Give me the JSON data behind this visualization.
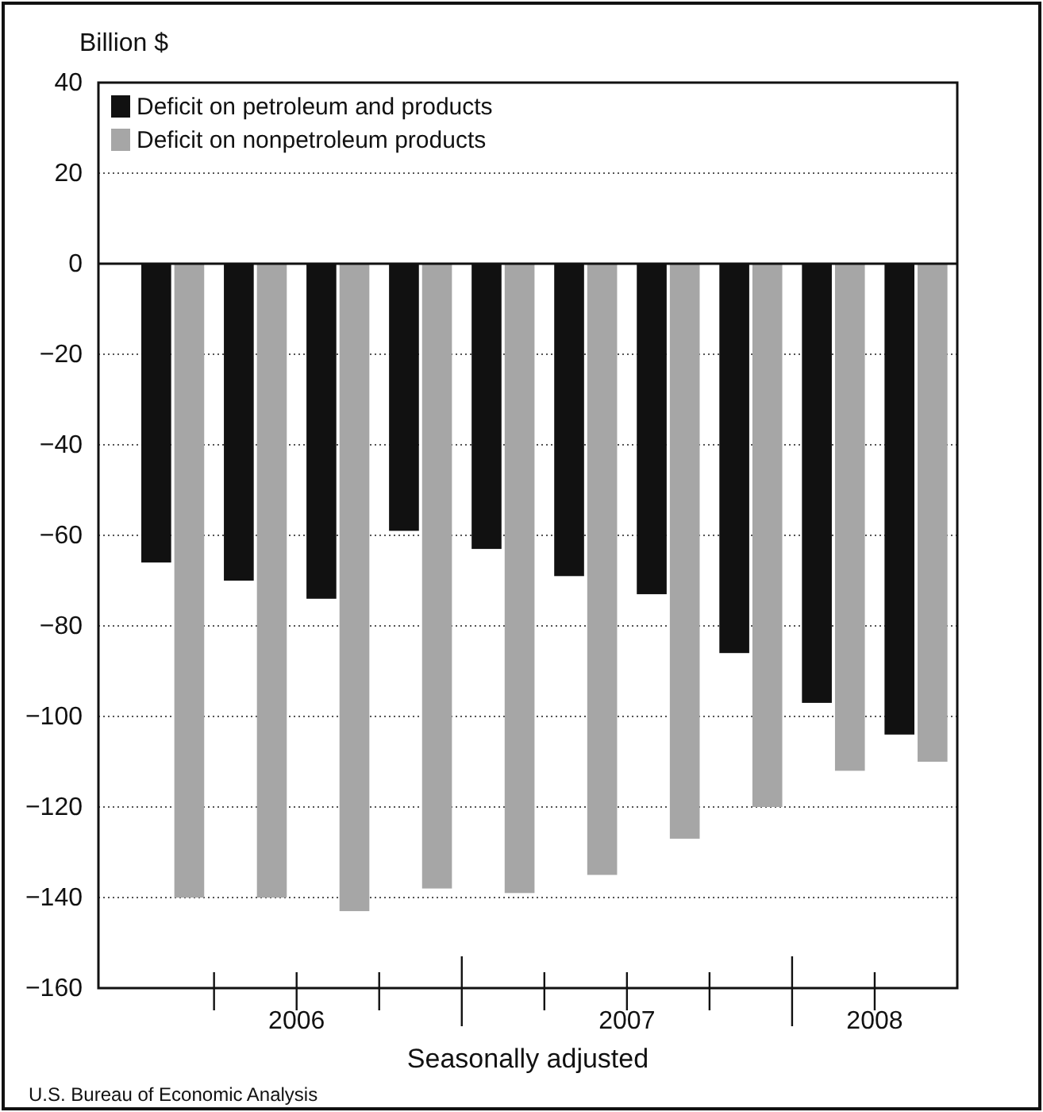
{
  "chart_data": {
    "type": "bar",
    "ylabel": "Billion $",
    "xlabel": "Seasonally adjusted",
    "annotations": [
      "U.S. Bureau of Economic Analysis"
    ],
    "x": [
      2006.125,
      2006.375,
      2006.625,
      2006.875,
      2007.125,
      2007.375,
      2007.625,
      2007.875,
      2008.125,
      2008.375
    ],
    "xlim": [
      2005.9,
      2008.5
    ],
    "xticks": [
      {
        "value": 2006.5,
        "label": "2006"
      },
      {
        "value": 2007.5,
        "label": "2007"
      },
      {
        "value": 2008.25,
        "label": "2008"
      }
    ],
    "series": [
      {
        "name": "Deficit on petroleum and products",
        "color": "#111111",
        "values": [
          -66,
          -70,
          -74,
          -59,
          -63,
          -69,
          -73,
          -86,
          -97,
          -104
        ]
      },
      {
        "name": "Deficit on nonpetroleum products",
        "color": "#a6a6a6",
        "values": [
          -140,
          -140,
          -143,
          -138,
          -139,
          -135,
          -127,
          -120,
          -112,
          -110
        ]
      }
    ],
    "ylim": [
      -160,
      40
    ],
    "yticks": [
      -160,
      -140,
      -120,
      -100,
      -80,
      -60,
      -40,
      -20,
      0,
      20,
      40
    ],
    "grid": "y",
    "legend": "top left"
  }
}
